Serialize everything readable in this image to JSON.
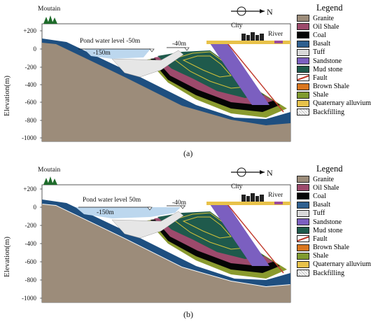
{
  "compass": {
    "north": "N"
  },
  "legend": {
    "title": "Legend",
    "items": [
      {
        "label": "Granite",
        "color": "#9c8c7a",
        "icon": "granite-swatch"
      },
      {
        "label": "Oil Shale",
        "color": "#9d4a6c",
        "icon": "oil-shale-swatch"
      },
      {
        "label": "Coal",
        "color": "#050505",
        "icon": "coal-swatch"
      },
      {
        "label": "Basalt",
        "color": "#2e5f8f",
        "icon": "basalt-swatch"
      },
      {
        "label": "Tuff",
        "color": "#d9d9d9",
        "icon": "tuff-swatch"
      },
      {
        "label": "Sandstone",
        "color": "#7b5fc0",
        "icon": "sandstone-swatch"
      },
      {
        "label": "Mud stone",
        "color": "#1f5a4c",
        "icon": "mudstone-swatch"
      },
      {
        "label": "Fault",
        "color": "#c0392b",
        "icon": "fault-line"
      },
      {
        "label": "Brown Shale",
        "color": "#d9761e",
        "icon": "brown-shale-swatch"
      },
      {
        "label": "Shale",
        "color": "#7f9a2e",
        "icon": "shale-swatch"
      },
      {
        "label": "Quaternary alluvium",
        "color": "#e8c24a",
        "icon": "alluvium-swatch"
      },
      {
        "label": "Backfilling",
        "color": "#e6e6e6",
        "icon": "backfilling-swatch"
      }
    ]
  },
  "axis": {
    "ylabel": "Elevation(m)",
    "ticks": [
      "+200",
      "0",
      "-200",
      "-400",
      "-600",
      "-800",
      "-1000"
    ]
  },
  "panels": [
    {
      "caption": "(a)",
      "mountain": "Moutain",
      "city": "City",
      "river": "River",
      "pond": "Pond water level -50m",
      "level_left": "-150m",
      "level_right": "-40m"
    },
    {
      "caption": "(b)",
      "mountain": "Moutain",
      "city": "City",
      "river": "River",
      "pond": "Pond water level 50m",
      "level_left": "-150m",
      "level_right": "-40m"
    }
  ]
}
